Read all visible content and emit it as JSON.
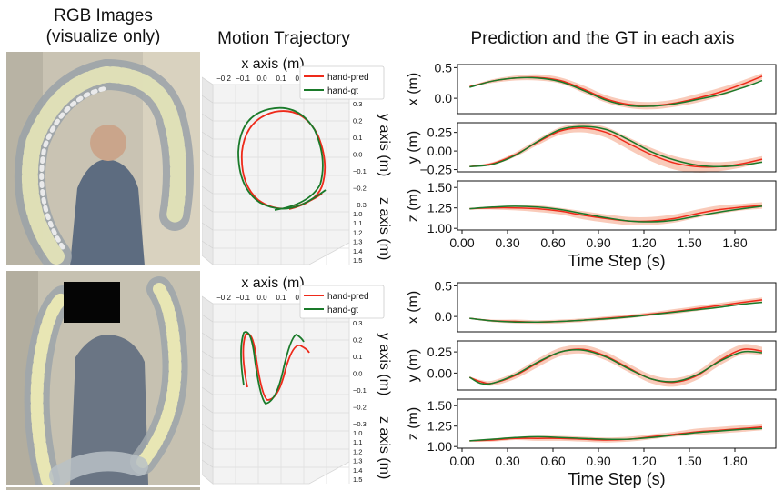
{
  "headers": {
    "rgb_line1": "RGB Images",
    "rgb_line2": "(visualize only)",
    "motion": "Motion Trajectory",
    "prediction": "Prediction and the GT in each axis"
  },
  "trajectory_3d": {
    "x_axis_label": "x axis (m)",
    "y_axis_label": "y axis (m)",
    "z_axis_label": "z axis (m)",
    "x_ticks": [
      "−0.2",
      "−0.1",
      "0.0",
      "0.1",
      "0.2",
      "0.3"
    ],
    "y_ticks": [
      "0.3",
      "0.2",
      "0.1",
      "0.0",
      "−0.1",
      "−0.2",
      "−0.3"
    ],
    "z_ticks": [
      "1.0",
      "1.1",
      "1.2",
      "1.3",
      "1.4",
      "1.5"
    ],
    "legend": [
      {
        "name": "hand-pred",
        "color": "#ee2a1a"
      },
      {
        "name": "hand-gt",
        "color": "#1a7a2a"
      }
    ]
  },
  "colors": {
    "pred": "#ee2a1a",
    "gt": "#1a7a2a",
    "band": "#f8c2ae"
  },
  "chart_data": [
    {
      "type": "line",
      "panel": "top",
      "axis": "x",
      "ylabel": "x (m)",
      "xlim": [
        -0.03,
        2.07
      ],
      "ylim": [
        -0.25,
        0.55
      ],
      "yticks": [
        0.5,
        0.0
      ],
      "ytick_labels": [
        "0.5",
        "0.0"
      ],
      "x": [
        0.05,
        0.2,
        0.35,
        0.5,
        0.65,
        0.8,
        0.95,
        1.1,
        1.25,
        1.4,
        1.55,
        1.7,
        1.85,
        1.98
      ],
      "series": [
        {
          "name": "hand-pred",
          "color": "#ee2a1a",
          "values": [
            0.19,
            0.28,
            0.33,
            0.34,
            0.29,
            0.15,
            -0.01,
            -0.1,
            -0.12,
            -0.08,
            0.0,
            0.1,
            0.23,
            0.36
          ]
        },
        {
          "name": "hand-gt",
          "color": "#1a7a2a",
          "values": [
            0.18,
            0.28,
            0.33,
            0.33,
            0.27,
            0.13,
            -0.03,
            -0.12,
            -0.13,
            -0.09,
            -0.02,
            0.06,
            0.17,
            0.29
          ]
        }
      ],
      "band_half_width": [
        0.01,
        0.03,
        0.04,
        0.05,
        0.05,
        0.06,
        0.06,
        0.06,
        0.06,
        0.06,
        0.07,
        0.07,
        0.06,
        0.05
      ]
    },
    {
      "type": "line",
      "panel": "top",
      "axis": "y",
      "ylabel": "y (m)",
      "xlim": [
        -0.03,
        2.07
      ],
      "ylim": [
        -0.28,
        0.38
      ],
      "yticks": [
        0.25,
        0.0,
        -0.25
      ],
      "ytick_labels": [
        "0.25",
        "0.00",
        "−0.25"
      ],
      "x": [
        0.05,
        0.2,
        0.35,
        0.5,
        0.65,
        0.8,
        0.95,
        1.1,
        1.25,
        1.4,
        1.55,
        1.7,
        1.85,
        1.98
      ],
      "series": [
        {
          "name": "hand-pred",
          "color": "#ee2a1a",
          "values": [
            -0.21,
            -0.17,
            -0.05,
            0.12,
            0.27,
            0.31,
            0.25,
            0.1,
            -0.05,
            -0.16,
            -0.21,
            -0.21,
            -0.17,
            -0.11
          ]
        },
        {
          "name": "hand-gt",
          "color": "#1a7a2a",
          "values": [
            -0.21,
            -0.18,
            -0.06,
            0.13,
            0.29,
            0.33,
            0.29,
            0.15,
            -0.01,
            -0.12,
            -0.19,
            -0.21,
            -0.19,
            -0.15
          ]
        }
      ],
      "band_half_width": [
        0.01,
        0.02,
        0.03,
        0.04,
        0.05,
        0.06,
        0.07,
        0.08,
        0.09,
        0.09,
        0.08,
        0.06,
        0.05,
        0.04
      ]
    },
    {
      "type": "line",
      "panel": "top",
      "axis": "z",
      "ylabel": "z (m)",
      "xlim": [
        -0.03,
        2.07
      ],
      "ylim": [
        0.98,
        1.58
      ],
      "yticks": [
        1.5,
        1.25,
        1.0
      ],
      "ytick_labels": [
        "1.50",
        "1.25",
        "1.00"
      ],
      "xticks": [
        0.0,
        0.3,
        0.6,
        0.9,
        1.2,
        1.5,
        1.8
      ],
      "xtick_labels": [
        "0.00",
        "0.30",
        "0.60",
        "0.90",
        "1.20",
        "1.50",
        "1.80"
      ],
      "xlabel": "Time Step (s)",
      "x": [
        0.05,
        0.2,
        0.35,
        0.5,
        0.65,
        0.8,
        0.95,
        1.1,
        1.25,
        1.4,
        1.55,
        1.7,
        1.85,
        1.98
      ],
      "series": [
        {
          "name": "hand-pred",
          "color": "#ee2a1a",
          "values": [
            1.24,
            1.25,
            1.25,
            1.24,
            1.21,
            1.16,
            1.12,
            1.09,
            1.09,
            1.12,
            1.18,
            1.23,
            1.26,
            1.28
          ]
        },
        {
          "name": "hand-gt",
          "color": "#1a7a2a",
          "values": [
            1.24,
            1.26,
            1.27,
            1.26,
            1.23,
            1.18,
            1.13,
            1.09,
            1.08,
            1.1,
            1.15,
            1.2,
            1.24,
            1.27
          ]
        }
      ],
      "band_half_width": [
        0.01,
        0.02,
        0.03,
        0.04,
        0.04,
        0.05,
        0.05,
        0.05,
        0.05,
        0.05,
        0.05,
        0.05,
        0.04,
        0.04
      ]
    },
    {
      "type": "line",
      "panel": "bottom",
      "axis": "x",
      "ylabel": "x (m)",
      "xlim": [
        -0.03,
        2.07
      ],
      "ylim": [
        -0.25,
        0.55
      ],
      "yticks": [
        0.5,
        0.0
      ],
      "ytick_labels": [
        "0.5",
        "0.0"
      ],
      "x": [
        0.05,
        0.2,
        0.35,
        0.5,
        0.65,
        0.8,
        0.95,
        1.1,
        1.25,
        1.4,
        1.55,
        1.7,
        1.85,
        1.98
      ],
      "series": [
        {
          "name": "hand-pred",
          "color": "#ee2a1a",
          "values": [
            -0.03,
            -0.07,
            -0.08,
            -0.09,
            -0.08,
            -0.06,
            -0.03,
            0.0,
            0.04,
            0.08,
            0.13,
            0.18,
            0.23,
            0.27
          ]
        },
        {
          "name": "hand-gt",
          "color": "#1a7a2a",
          "values": [
            -0.03,
            -0.07,
            -0.09,
            -0.09,
            -0.08,
            -0.06,
            -0.04,
            -0.01,
            0.03,
            0.07,
            0.11,
            0.15,
            0.2,
            0.23
          ]
        }
      ],
      "band_half_width": [
        0.01,
        0.02,
        0.03,
        0.03,
        0.03,
        0.03,
        0.03,
        0.03,
        0.03,
        0.04,
        0.04,
        0.04,
        0.04,
        0.04
      ]
    },
    {
      "type": "line",
      "panel": "bottom",
      "axis": "y",
      "ylabel": "y (m)",
      "xlim": [
        -0.03,
        2.07
      ],
      "ylim": [
        -0.2,
        0.38
      ],
      "yticks": [
        0.25,
        0.0
      ],
      "ytick_labels": [
        "0.25",
        "0.00"
      ],
      "x": [
        0.05,
        0.12,
        0.2,
        0.35,
        0.5,
        0.65,
        0.8,
        0.95,
        1.1,
        1.25,
        1.4,
        1.55,
        1.7,
        1.85,
        1.98
      ],
      "series": [
        {
          "name": "hand-pred",
          "color": "#ee2a1a",
          "values": [
            -0.05,
            -0.1,
            -0.12,
            -0.03,
            0.12,
            0.25,
            0.28,
            0.2,
            0.06,
            -0.07,
            -0.11,
            -0.03,
            0.15,
            0.28,
            0.26
          ]
        },
        {
          "name": "hand-gt",
          "color": "#1a7a2a",
          "values": [
            -0.05,
            -0.12,
            -0.12,
            -0.02,
            0.13,
            0.25,
            0.27,
            0.19,
            0.05,
            -0.07,
            -0.1,
            -0.02,
            0.14,
            0.25,
            0.24
          ]
        }
      ],
      "band_half_width": [
        0.01,
        0.02,
        0.03,
        0.04,
        0.05,
        0.05,
        0.05,
        0.05,
        0.05,
        0.05,
        0.05,
        0.05,
        0.06,
        0.06,
        0.05
      ]
    },
    {
      "type": "line",
      "panel": "bottom",
      "axis": "z",
      "ylabel": "z (m)",
      "xlim": [
        -0.03,
        2.07
      ],
      "ylim": [
        0.98,
        1.58
      ],
      "yticks": [
        1.5,
        1.25,
        1.0
      ],
      "ytick_labels": [
        "1.50",
        "1.25",
        "1.00"
      ],
      "xticks": [
        0.0,
        0.3,
        0.6,
        0.9,
        1.2,
        1.5,
        1.8
      ],
      "xtick_labels": [
        "0.00",
        "0.30",
        "0.60",
        "0.90",
        "1.20",
        "1.50",
        "1.80"
      ],
      "xlabel": "Time Step (s)",
      "x": [
        0.05,
        0.2,
        0.35,
        0.5,
        0.65,
        0.8,
        0.95,
        1.1,
        1.25,
        1.4,
        1.55,
        1.7,
        1.85,
        1.98
      ],
      "series": [
        {
          "name": "hand-pred",
          "color": "#ee2a1a",
          "values": [
            1.07,
            1.08,
            1.1,
            1.1,
            1.1,
            1.09,
            1.08,
            1.09,
            1.12,
            1.15,
            1.18,
            1.2,
            1.22,
            1.24
          ]
        },
        {
          "name": "hand-gt",
          "color": "#1a7a2a",
          "values": [
            1.07,
            1.09,
            1.11,
            1.12,
            1.11,
            1.1,
            1.09,
            1.09,
            1.11,
            1.14,
            1.17,
            1.19,
            1.21,
            1.22
          ]
        }
      ],
      "band_half_width": [
        0.01,
        0.02,
        0.02,
        0.03,
        0.03,
        0.03,
        0.03,
        0.03,
        0.03,
        0.03,
        0.04,
        0.04,
        0.04,
        0.04
      ]
    }
  ]
}
